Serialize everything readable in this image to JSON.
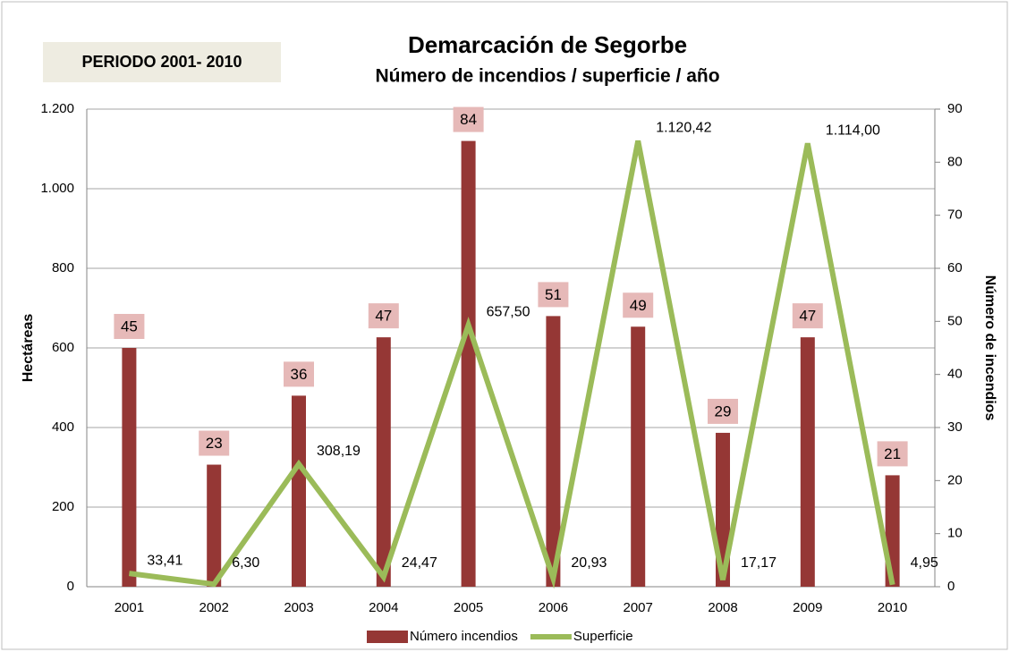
{
  "chart_data": {
    "type": "bar_line",
    "title": "Demarcación de Segorbe",
    "subtitle": "Número de incendios / superficie / año",
    "annotation": "PERIODO 2001- 2010",
    "y_label": "Hectáreas",
    "y2_label": "Número de incendios",
    "categories": [
      "2001",
      "2002",
      "2003",
      "2004",
      "2005",
      "2006",
      "2007",
      "2008",
      "2009",
      "2010"
    ],
    "series": [
      {
        "name": "Número incendios",
        "type": "bar",
        "axis": "y2",
        "color": "#953735",
        "values": [
          45,
          23,
          36,
          47,
          84,
          51,
          49,
          29,
          47,
          21
        ]
      },
      {
        "name": "Superficie",
        "type": "line",
        "axis": "y",
        "color": "#9bbb59",
        "values": [
          33.41,
          6.3,
          308.19,
          24.47,
          657.5,
          20.93,
          1120.42,
          17.17,
          1114.0,
          4.95
        ],
        "value_labels": [
          "33,41",
          "6,30",
          "308,19",
          "24,47",
          "657,50",
          "20,93",
          "1.120,42",
          "17,17",
          "1.114,00",
          "4,95"
        ]
      }
    ],
    "ylim": [
      0,
      1200
    ],
    "yticks": [
      0,
      200,
      400,
      600,
      800,
      {
        "value": 1000,
        "label": "1.000"
      },
      {
        "value": 1200,
        "label": "1.200"
      }
    ],
    "y2lim": [
      0,
      90
    ],
    "y2ticks": [
      0,
      10,
      20,
      30,
      40,
      50,
      60,
      70,
      80,
      90
    ],
    "grid": true
  }
}
